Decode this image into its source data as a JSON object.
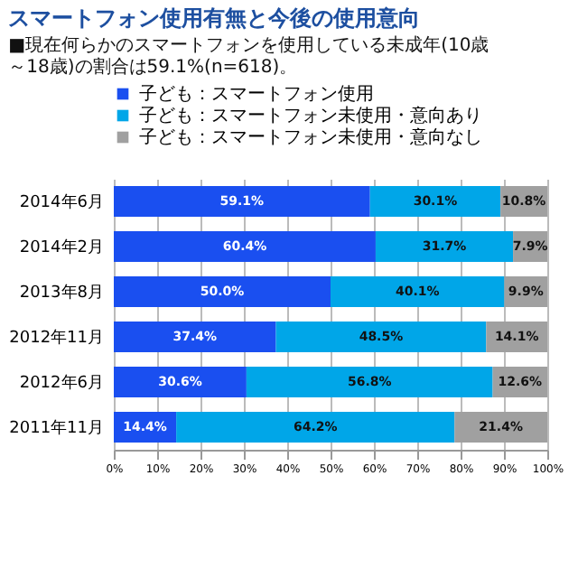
{
  "chart_data": {
    "type": "bar",
    "orientation": "horizontal",
    "stacked": true,
    "title": "スマートフォン使用有無と今後の使用意向",
    "subtitle": "■現在何らかのスマートフォンを使用している未成年(10歳～18歳)の割合は59.1%(n=618)。",
    "categories": [
      "2014年6月",
      "2014年2月",
      "2013年8月",
      "2012年11月",
      "2012年6月",
      "2011年11月"
    ],
    "series": [
      {
        "name": "子ども：スマートフォン使用",
        "color": "#1a4ff0",
        "values": [
          59.1,
          60.4,
          50.0,
          37.4,
          30.6,
          14.4
        ],
        "value_labels": [
          "59.1%",
          "60.4%",
          "50.0%",
          "37.4%",
          "30.6%",
          "14.4%"
        ]
      },
      {
        "name": "子ども：スマートフォン未使用・意向あり",
        "color": "#00a6e8",
        "values": [
          30.1,
          31.7,
          40.1,
          48.5,
          56.8,
          64.2
        ],
        "value_labels": [
          "30.1%",
          "31.7%",
          "40.1%",
          "48.5%",
          "56.8%",
          "64.2%"
        ]
      },
      {
        "name": "子ども：スマートフォン未使用・意向なし",
        "color": "#a0a0a0",
        "values": [
          10.8,
          7.9,
          9.9,
          14.1,
          12.6,
          21.4
        ],
        "value_labels": [
          "10.8%",
          "7.9%",
          "9.9%",
          "14.1%",
          "12.6%",
          "21.4%"
        ]
      }
    ],
    "xlim": [
      0,
      100
    ],
    "xticks": [
      {
        "value": 0,
        "label": "0%"
      },
      {
        "value": 10,
        "label": "10%"
      },
      {
        "value": 20,
        "label": "20%"
      },
      {
        "value": 30,
        "label": "30%"
      },
      {
        "value": 40,
        "label": "40%"
      },
      {
        "value": 50,
        "label": "50%"
      },
      {
        "value": 60,
        "label": "60%"
      },
      {
        "value": 70,
        "label": "70%"
      },
      {
        "value": 80,
        "label": "80%"
      },
      {
        "value": 90,
        "label": "90%"
      },
      {
        "value": 100,
        "label": "100%"
      }
    ],
    "grid": "x",
    "legend": "top"
  }
}
